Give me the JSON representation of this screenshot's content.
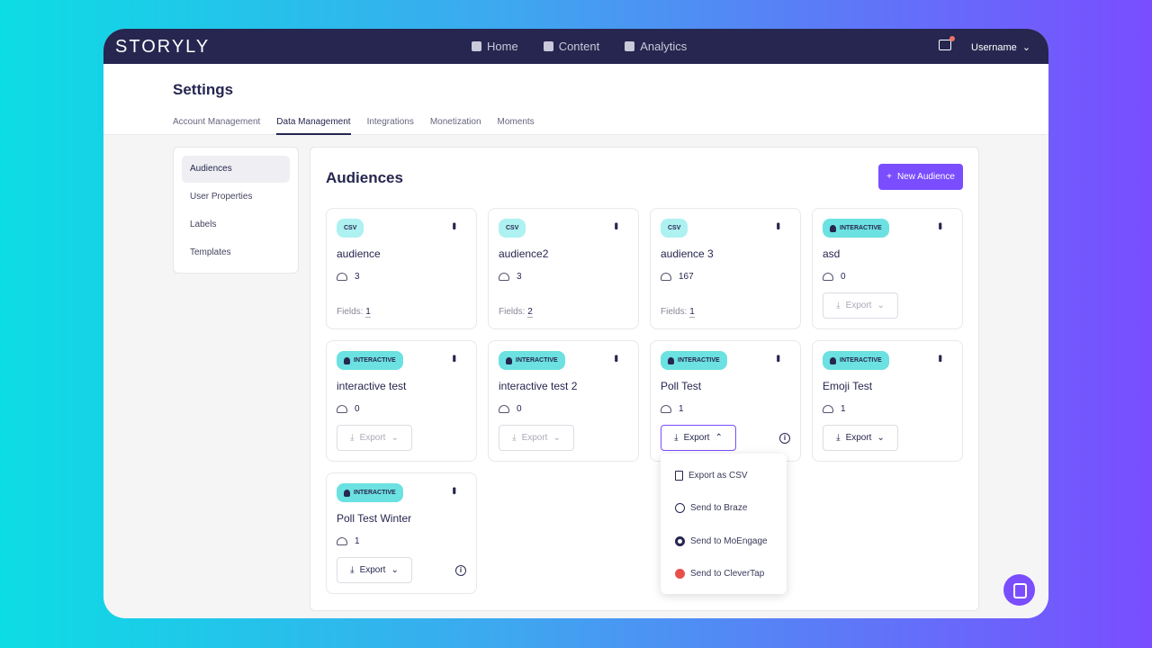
{
  "nav": {
    "logo": "STORYLY",
    "links": [
      {
        "label": "Home",
        "icon": "home-icon"
      },
      {
        "label": "Content",
        "icon": "content-icon"
      },
      {
        "label": "Analytics",
        "icon": "analytics-icon"
      }
    ],
    "user": "Username",
    "notification": true
  },
  "header": {
    "title": "Settings",
    "tabs": [
      "Account Management",
      "Data Management",
      "Integrations",
      "Monetization",
      "Moments"
    ],
    "active_tab": "Data Management"
  },
  "sidebar": {
    "items": [
      "Audiences",
      "User Properties",
      "Labels",
      "Templates"
    ],
    "active": "Audiences"
  },
  "main": {
    "title": "Audiences",
    "new_button": "New Audience",
    "fields_label": "Fields:",
    "export_label": "Export",
    "cards": [
      {
        "type": "CSV",
        "name": "audience",
        "count": "3",
        "fields": "1"
      },
      {
        "type": "CSV",
        "name": "audience2",
        "count": "3",
        "fields": "2"
      },
      {
        "type": "CSV",
        "name": "audience 3",
        "count": "167",
        "fields": "1"
      },
      {
        "type": "INTERACTIVE",
        "name": "asd",
        "count": "0",
        "export_enabled": false
      },
      {
        "type": "INTERACTIVE",
        "name": "interactive test",
        "count": "0",
        "export_enabled": false
      },
      {
        "type": "INTERACTIVE",
        "name": "interactive test 2",
        "count": "0",
        "export_enabled": false
      },
      {
        "type": "INTERACTIVE",
        "name": "Poll Test",
        "count": "1",
        "export_enabled": true,
        "open": true
      },
      {
        "type": "INTERACTIVE",
        "name": "Emoji Test",
        "count": "1",
        "export_enabled": true
      },
      {
        "type": "INTERACTIVE",
        "name": "Poll Test Winter",
        "count": "1",
        "export_enabled": true
      }
    ]
  },
  "export_menu": [
    {
      "label": "Export as CSV",
      "icon": "file-icon"
    },
    {
      "label": "Send to Braze",
      "icon": "braze-icon"
    },
    {
      "label": "Send to MoEngage",
      "icon": "moengage-icon"
    },
    {
      "label": "Send to CleverTap",
      "icon": "clevertap-icon"
    }
  ],
  "colors": {
    "nav": "#262650",
    "accent": "#7a4dff",
    "csv_badge": "#aef1f1",
    "interactive_badge": "#6ce1e1",
    "clevertap": "#e8504a"
  }
}
